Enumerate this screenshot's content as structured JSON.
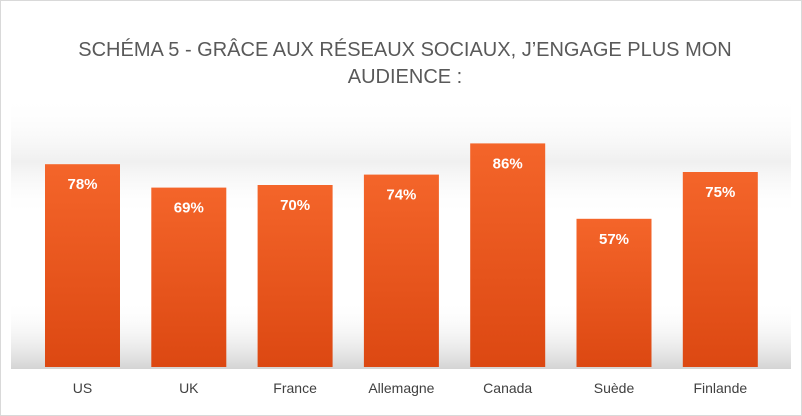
{
  "chart_data": {
    "type": "bar",
    "title_lines": [
      "SCHÉMA 5 - GRÂCE AUX RÉSEAUX SOCIAUX, J’ENGAGE PLUS MON",
      "AUDIENCE :"
    ],
    "categories": [
      "US",
      "UK",
      "France",
      "Allemagne",
      "Canada",
      "Suède",
      "Finlande"
    ],
    "values": [
      78,
      69,
      70,
      74,
      86,
      57,
      75
    ],
    "value_labels": [
      "78%",
      "69%",
      "70%",
      "74%",
      "86%",
      "57%",
      "75%"
    ],
    "unit": "%",
    "ylim": [
      0,
      100
    ],
    "grid": false,
    "legend": "none",
    "colors": {
      "bar_top": "#f4652a",
      "bar_bottom": "#dc4812",
      "title": "#595959",
      "category_text": "#404040",
      "value_text": "#ffffff"
    }
  }
}
